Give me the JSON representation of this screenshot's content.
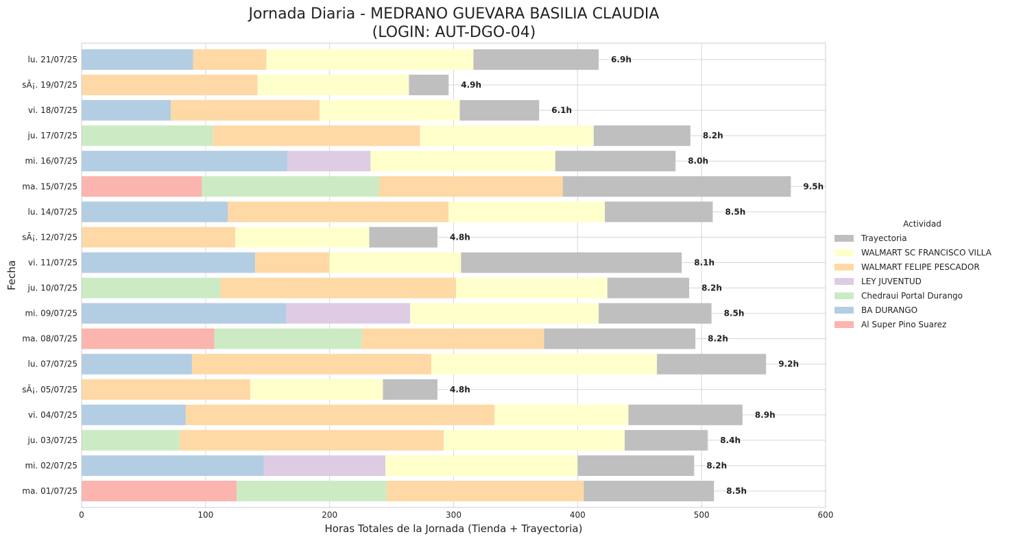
{
  "chart_data": {
    "type": "bar",
    "orientation": "horizontal",
    "stacked": true,
    "title": "Jornada Diaria - MEDRANO GUEVARA BASILIA CLAUDIA",
    "subtitle": "(LOGIN: AUT-DGO-04)",
    "xlabel": "Horas Totales de la Jornada (Tienda + Trayectoria)",
    "ylabel": "Fecha",
    "xlim": [
      0,
      600
    ],
    "xticks": [
      0,
      100,
      200,
      300,
      400,
      500,
      600
    ],
    "grid": true,
    "legend_title": "Actividad",
    "legend_position": "right",
    "categories": [
      "lu. 21/07/25",
      "sÃ¡. 19/07/25",
      "vi. 18/07/25",
      "ju. 17/07/25",
      "mi. 16/07/25",
      "ma. 15/07/25",
      "lu. 14/07/25",
      "sÃ¡. 12/07/25",
      "vi. 11/07/25",
      "ju. 10/07/25",
      "mi. 09/07/25",
      "ma. 08/07/25",
      "lu. 07/07/25",
      "sÃ¡. 05/07/25",
      "vi. 04/07/25",
      "ju. 03/07/25",
      "mi. 02/07/25",
      "ma. 01/07/25"
    ],
    "series": [
      {
        "name": "Al Super Pino Suarez",
        "color": "#fbb4ae",
        "values": [
          0,
          0,
          0,
          0,
          0,
          97,
          0,
          0,
          0,
          0,
          0,
          107,
          0,
          0,
          0,
          0,
          0,
          125
        ]
      },
      {
        "name": "BA DURANGO",
        "color": "#b3cde3",
        "values": [
          90,
          0,
          72,
          0,
          166,
          0,
          118,
          0,
          140,
          0,
          165,
          0,
          89,
          0,
          84,
          0,
          147,
          0
        ]
      },
      {
        "name": "Chedraui Portal Durango",
        "color": "#ccebc5",
        "values": [
          0,
          0,
          0,
          106,
          0,
          143,
          0,
          0,
          0,
          112,
          0,
          119,
          0,
          0,
          0,
          79,
          0,
          121
        ]
      },
      {
        "name": "LEY JUVENTUD",
        "color": "#decbe4",
        "values": [
          0,
          0,
          0,
          0,
          67,
          0,
          0,
          0,
          0,
          0,
          100,
          0,
          0,
          0,
          0,
          0,
          98,
          0
        ]
      },
      {
        "name": "WALMART FELIPE PESCADOR",
        "color": "#fed9a6",
        "values": [
          59,
          142,
          120,
          167,
          0,
          148,
          178,
          124,
          60,
          190,
          0,
          147,
          193,
          136,
          249,
          213,
          0,
          159
        ]
      },
      {
        "name": "WALMART SC FRANCISCO VILLA",
        "color": "#ffffcc",
        "values": [
          167,
          122,
          113,
          140,
          149,
          0,
          126,
          108,
          106,
          122,
          152,
          0,
          182,
          107,
          108,
          146,
          155,
          0
        ]
      },
      {
        "name": "Trayectoria",
        "color": "#bfbfbf",
        "values": [
          101,
          32,
          64,
          78,
          97,
          184,
          87,
          55,
          178,
          66,
          91,
          122,
          88,
          44,
          92,
          67,
          94,
          105
        ]
      }
    ],
    "bar_labels": [
      "6.9h",
      "4.9h",
      "6.1h",
      "8.2h",
      "8.0h",
      "9.5h",
      "8.5h",
      "4.8h",
      "8.1h",
      "8.2h",
      "8.5h",
      "8.2h",
      "9.2h",
      "4.8h",
      "8.9h",
      "8.4h",
      "8.2h",
      "8.5h"
    ],
    "legend_order": [
      "Trayectoria",
      "WALMART SC FRANCISCO VILLA",
      "WALMART FELIPE PESCADOR",
      "LEY JUVENTUD",
      "Chedraui Portal Durango",
      "BA DURANGO",
      "Al Super Pino Suarez"
    ]
  }
}
